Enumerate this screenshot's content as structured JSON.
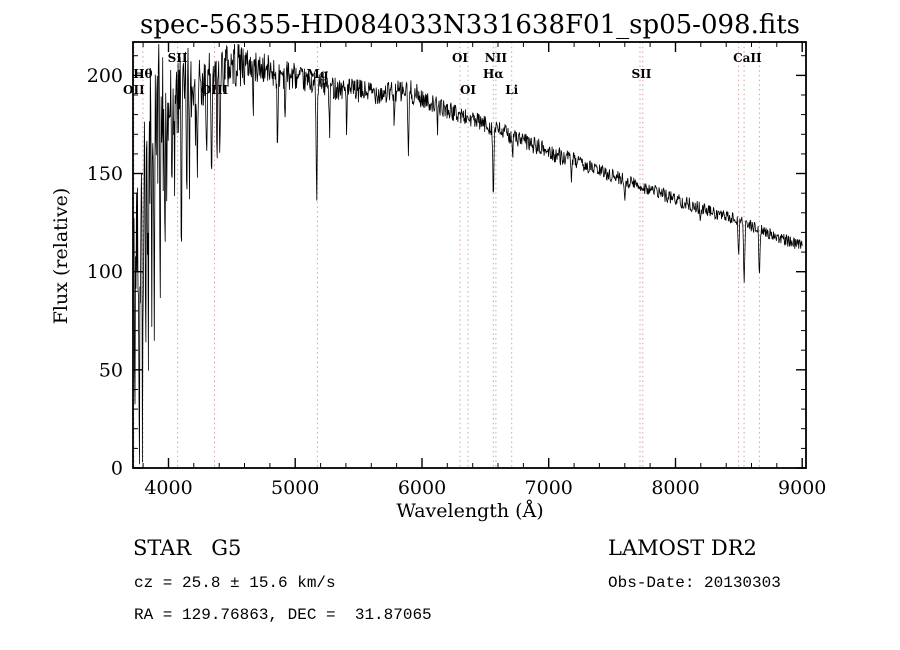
{
  "title": "spec-56355-HD084033N331638F01_sp05-098.fits",
  "annotations": {
    "class_label": "STAR   G5",
    "survey": "LAMOST DR2",
    "cz": "cz = 25.8 ± 15.6 km/s",
    "obs_date": "Obs-Date: 20130303",
    "coords": "RA = 129.76863, DEC =  31.87065"
  },
  "chart_data": {
    "type": "line",
    "title": "spec-56355-HD084033N331638F01_sp05-098.fits",
    "xlabel": "Wavelength (Å)",
    "ylabel": "Flux (relative)",
    "xlim": [
      3720,
      9030
    ],
    "ylim": [
      0,
      217
    ],
    "xticks": [
      4000,
      5000,
      6000,
      7000,
      8000,
      9000
    ],
    "yticks": [
      0,
      50,
      100,
      150,
      200
    ],
    "x_minor_step": 200,
    "y_minor_step": 10,
    "grid": false,
    "legend": "none",
    "line_color": "#000000",
    "marker_color": "#d2a2a2",
    "seed": 42,
    "n_points": 1350,
    "wl_range": [
      3724,
      9000
    ],
    "spectral_lines": [
      {
        "label": "OII",
        "wavelengths": [
          3727
        ],
        "row": 3
      },
      {
        "label": "Hθ",
        "wavelengths": [
          3798
        ],
        "row": 2
      },
      {
        "label": "SII",
        "wavelengths": [
          4072
        ],
        "row": 1
      },
      {
        "label": "OIII",
        "wavelengths": [
          4363
        ],
        "row": 3
      },
      {
        "label": "Mg",
        "wavelengths": [
          5175
        ],
        "row": 2
      },
      {
        "label": "OI",
        "wavelengths": [
          6300
        ],
        "row": 1
      },
      {
        "label": "OI",
        "wavelengths": [
          6363
        ],
        "row": 3
      },
      {
        "label": "NII",
        "wavelengths": [
          6583
        ],
        "row": 1
      },
      {
        "label": "Hα",
        "wavelengths": [
          6563
        ],
        "row": 2
      },
      {
        "label": "Li",
        "wavelengths": [
          6708
        ],
        "row": 3
      },
      {
        "label": "SII",
        "wavelengths": [
          7720,
          7742
        ],
        "row": 2
      },
      {
        "label": "CaII",
        "wavelengths": [
          8498,
          8542,
          8662
        ],
        "row": 1
      }
    ],
    "envelope": [
      [
        3724,
        100
      ],
      [
        3780,
        150
      ],
      [
        3850,
        168
      ],
      [
        3920,
        178
      ],
      [
        4000,
        183
      ],
      [
        4150,
        192
      ],
      [
        4300,
        198
      ],
      [
        4450,
        204
      ],
      [
        4550,
        207
      ],
      [
        4700,
        204
      ],
      [
        4900,
        201
      ],
      [
        5100,
        197
      ],
      [
        5300,
        194
      ],
      [
        5500,
        192
      ],
      [
        5700,
        191
      ],
      [
        5900,
        192
      ],
      [
        6000,
        188
      ],
      [
        6250,
        181
      ],
      [
        6500,
        175
      ],
      [
        6750,
        168
      ],
      [
        7000,
        161
      ],
      [
        7250,
        155
      ],
      [
        7500,
        149
      ],
      [
        7750,
        143
      ],
      [
        8000,
        137
      ],
      [
        8250,
        131
      ],
      [
        8500,
        126
      ],
      [
        8750,
        119
      ],
      [
        9000,
        113
      ]
    ],
    "noise_segments": [
      {
        "to": 3960,
        "amp": 40
      },
      {
        "to": 4200,
        "amp": 24
      },
      {
        "to": 4600,
        "amp": 13
      },
      {
        "to": 5000,
        "amp": 8
      },
      {
        "to": 6000,
        "amp": 6
      },
      {
        "to": 7200,
        "amp": 4.5
      },
      {
        "to": 8300,
        "amp": 3.5
      },
      {
        "to": 9001,
        "amp": 3
      }
    ],
    "absorption_dips": [
      [
        3736,
        60,
        5
      ],
      [
        3770,
        70,
        5
      ],
      [
        3798,
        85,
        5
      ],
      [
        3820,
        75,
        4
      ],
      [
        3835,
        100,
        5
      ],
      [
        3868,
        70,
        4
      ],
      [
        3889,
        95,
        5
      ],
      [
        3934,
        70,
        4
      ],
      [
        3969,
        65,
        4
      ],
      [
        4026,
        40,
        4
      ],
      [
        4102,
        55,
        6
      ],
      [
        4144,
        35,
        4
      ],
      [
        4227,
        40,
        4
      ],
      [
        4300,
        45,
        6
      ],
      [
        4340,
        48,
        6
      ],
      [
        4383,
        50,
        4
      ],
      [
        4405,
        35,
        4
      ],
      [
        4668,
        25,
        4
      ],
      [
        4861,
        42,
        6
      ],
      [
        4920,
        25,
        4
      ],
      [
        5169,
        55,
        7
      ],
      [
        5270,
        25,
        5
      ],
      [
        5405,
        20,
        4
      ],
      [
        5780,
        18,
        4
      ],
      [
        5893,
        33,
        6
      ],
      [
        6122,
        15,
        4
      ],
      [
        6563,
        36,
        6
      ],
      [
        6717,
        10,
        4
      ],
      [
        7180,
        8,
        4
      ],
      [
        7600,
        10,
        5
      ],
      [
        8195,
        10,
        4
      ],
      [
        8498,
        16,
        6
      ],
      [
        8542,
        28,
        7
      ],
      [
        8662,
        22,
        6
      ]
    ]
  }
}
